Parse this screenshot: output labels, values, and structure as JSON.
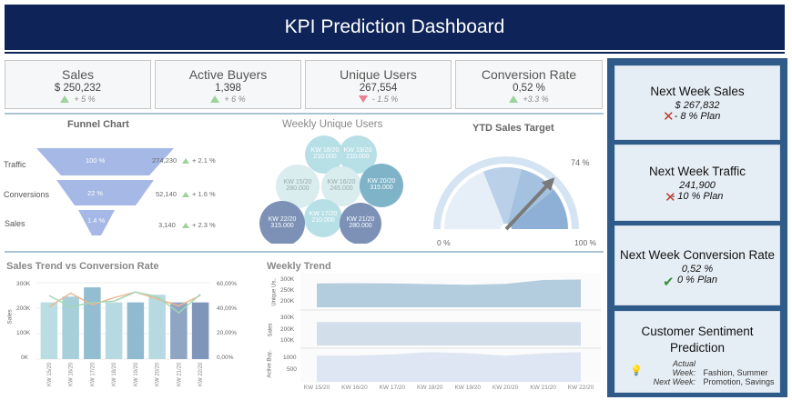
{
  "header": {
    "title": "KPI Prediction Dashboard"
  },
  "kpis": [
    {
      "name": "Sales",
      "value": "$ 250,232",
      "change": "+ 5 %",
      "direction": "up"
    },
    {
      "name": "Active Buyers",
      "value": "1,398",
      "change": "+ 6 %",
      "direction": "up"
    },
    {
      "name": "Unique Users",
      "value": "267,554",
      "change": "- 1.5 %",
      "direction": "down"
    },
    {
      "name": "Conversion Rate",
      "value": "0,52 %",
      "change": "+3.3 %",
      "direction": "up"
    }
  ],
  "funnel": {
    "title": "Funnel Chart",
    "stages": [
      {
        "label": "Traffic",
        "pct": "100 %",
        "count": "274,230",
        "change": "+ 2.1 %"
      },
      {
        "label": "Conversions",
        "pct": "22 %",
        "count": "52,140",
        "change": "+ 1.6 %"
      },
      {
        "label": "Sales",
        "pct": "1.4 %",
        "count": "3,140",
        "change": "+ 2.3 %"
      }
    ]
  },
  "bubbles": {
    "title": "Weekly Unique Users",
    "items": [
      {
        "week": "KW 18/20",
        "value": "210.000"
      },
      {
        "week": "KW 19/20",
        "value": "210.000"
      },
      {
        "week": "KW 15/20",
        "value": "280.000"
      },
      {
        "week": "KW 16/20",
        "value": "245.000"
      },
      {
        "week": "KW 20/20",
        "value": "315.000"
      },
      {
        "week": "KW 17/20",
        "value": "210.000"
      },
      {
        "week": "KW 22/20",
        "value": "315.000"
      },
      {
        "week": "KW 21/20",
        "value": "280.000"
      }
    ]
  },
  "gauge": {
    "title": "YTD Sales Target",
    "value_label": "74 %",
    "min_label": "0 %",
    "max_label": "100 %"
  },
  "sales_trend": {
    "title": "Sales Trend vs Conversion Rate",
    "ylabel": "Sales",
    "y_ticks": [
      "300K",
      "200K",
      "100K",
      "0K"
    ],
    "y2_ticks": [
      "60,00%",
      "40,00%",
      "20,00%",
      "0,00%"
    ]
  },
  "weekly_trend": {
    "title": "Weekly Trend",
    "row_labels": [
      "Unique Us..",
      "Sales",
      "Active Buy.."
    ],
    "ticks_users": [
      "300K",
      "250K",
      "200K"
    ],
    "ticks_sales": [
      "300K",
      "200K",
      "100K"
    ],
    "ticks_buyers": [
      "1000",
      "500"
    ]
  },
  "chart_data": [
    {
      "type": "bar",
      "title": "Sales Trend vs Conversion Rate",
      "categories": [
        "KW 15/20",
        "KW 16/20",
        "KW 17/20",
        "KW 18/20",
        "KW 19/20",
        "KW 20/20",
        "KW 21/20",
        "KW 22/20"
      ],
      "ylabel": "Sales",
      "ylim": [
        0,
        330000
      ],
      "y2lim": [
        0,
        0.66
      ],
      "series": [
        {
          "values": [
            245000,
            270000,
            310000,
            245000,
            245000,
            278000,
            245000,
            245000
          ],
          "colors": [
            "#b9dde3",
            "#a7cfd9",
            "#93bdd0",
            "#b7d9e1",
            "#8fbad0",
            "#b7d9e1",
            "#8ea6c4",
            "#7f96ba"
          ]
        },
        {
          "type": "line",
          "axis": "secondary",
          "values": [
            0.45,
            0.57,
            0.47,
            0.53,
            0.58,
            0.52,
            0.46,
            0.55
          ]
        },
        {
          "type": "line",
          "axis": "secondary",
          "values": [
            0.55,
            0.45,
            0.49,
            0.5,
            0.58,
            0.54,
            0.4,
            0.56
          ]
        }
      ]
    },
    {
      "type": "area",
      "title": "Weekly Trend",
      "categories": [
        "KW 15/20",
        "KW 16/20",
        "KW 17/20",
        "KW 18/20",
        "KW 19/20",
        "KW 20/20",
        "KW 21/20",
        "KW 22/20"
      ],
      "series": [
        {
          "name": "Unique Us..",
          "ylim": [
            180000,
            320000
          ],
          "values": [
            285000,
            286000,
            285000,
            282000,
            279000,
            283000,
            300000,
            302000
          ]
        },
        {
          "name": "Sales",
          "ylim": [
            0,
            330000
          ],
          "values": [
            250000,
            250000,
            250000,
            250000,
            250000,
            250000,
            250000,
            250000
          ]
        },
        {
          "name": "Active Buy..",
          "ylim": [
            0,
            1300
          ],
          "values": [
            1100,
            1100,
            1150,
            1250,
            1200,
            1100,
            1200,
            1250
          ]
        }
      ]
    },
    {
      "type": "bar",
      "title": "YTD Sales Target",
      "values": [
        74
      ],
      "ylim": [
        0,
        100
      ]
    }
  ],
  "side": {
    "cards": [
      {
        "title": "Next Week Sales",
        "value": "$ 267,832",
        "plan": "- 8 % Plan",
        "status": "fail"
      },
      {
        "title": "Next Week Traffic",
        "value": "241,900",
        "plan": "- 10 % Plan",
        "status": "fail"
      },
      {
        "title": "Next Week Conversion Rate",
        "value": "0,52 %",
        "plan": "0 % Plan",
        "status": "ok"
      }
    ],
    "sentiment": {
      "title": "Customer Sentiment Prediction",
      "actual_label": "Actual Week:",
      "actual_value": "Fashion, Summer",
      "next_label": "Next Week:",
      "next_value": "Promotion, Savings"
    }
  },
  "colors": {
    "navy": "#0e2358",
    "side_bg": "#2f5b8a",
    "card_bg": "#e6eef5",
    "up": "#9bd39b",
    "down": "#ee7f92"
  }
}
